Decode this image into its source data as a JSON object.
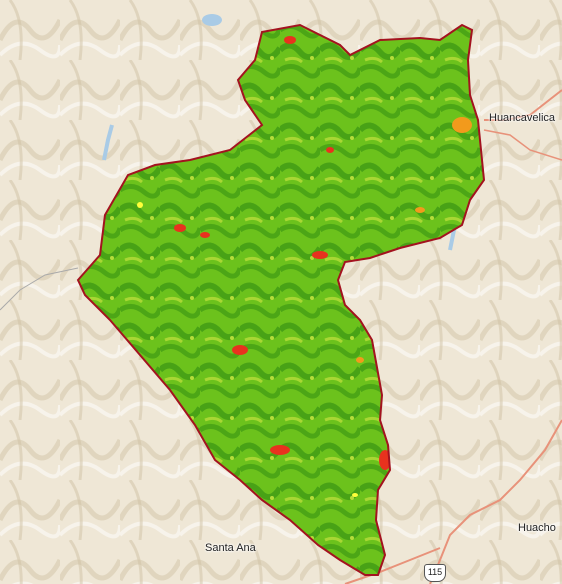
{
  "map": {
    "labels": {
      "huancavelica": "Huancavelica",
      "santa_ana": "Santa Ana",
      "huachocolpa": "Huacho"
    },
    "route_shield": "115",
    "colors": {
      "terrain_base": "#efe7d6",
      "hillshade": "#d8ccb2",
      "vegetation_dense": "#3f9a14",
      "vegetation_mid": "#6cc21c",
      "vegetation_light": "#b6dc3a",
      "stress_high": "#e8321e",
      "stress_mid": "#f29a1c",
      "boundary": "#a3131f",
      "road": "#e8927a",
      "water": "#a9cbe6"
    }
  }
}
